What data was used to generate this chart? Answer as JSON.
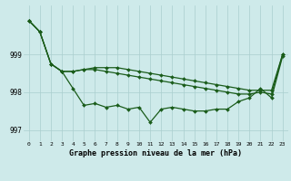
{
  "x": [
    0,
    1,
    2,
    3,
    4,
    5,
    6,
    7,
    8,
    9,
    10,
    11,
    12,
    13,
    14,
    15,
    16,
    17,
    18,
    19,
    20,
    21,
    22,
    23
  ],
  "line1": [
    999.9,
    999.6,
    998.75,
    998.55,
    998.1,
    997.65,
    997.7,
    997.6,
    997.65,
    997.55,
    997.6,
    997.2,
    997.55,
    997.6,
    997.55,
    997.5,
    997.5,
    997.55,
    997.55,
    997.75,
    997.85,
    998.1,
    997.85,
    998.95
  ],
  "line2": [
    999.9,
    999.6,
    998.75,
    998.55,
    998.55,
    998.6,
    998.65,
    998.65,
    998.65,
    998.6,
    998.55,
    998.5,
    998.45,
    998.4,
    998.35,
    998.3,
    998.25,
    998.2,
    998.15,
    998.1,
    998.05,
    998.05,
    998.05,
    999.0
  ],
  "line3": [
    999.9,
    999.6,
    998.75,
    998.55,
    998.55,
    998.6,
    998.6,
    998.55,
    998.5,
    998.45,
    998.4,
    998.35,
    998.3,
    998.25,
    998.2,
    998.15,
    998.1,
    998.05,
    998.0,
    997.95,
    997.95,
    998.0,
    997.95,
    999.0
  ],
  "line_color": "#1a5c1a",
  "marker": "D",
  "markersize": 2.0,
  "linewidth": 0.9,
  "ylim": [
    996.7,
    1000.3
  ],
  "yticks": [
    997,
    998,
    999
  ],
  "xticks": [
    0,
    1,
    2,
    3,
    4,
    5,
    6,
    7,
    8,
    9,
    10,
    11,
    12,
    13,
    14,
    15,
    16,
    17,
    18,
    19,
    20,
    21,
    22,
    23
  ],
  "xlabel": "Graphe pression niveau de la mer (hPa)",
  "bg_color": "#ceeaea",
  "grid_color": "#aacece",
  "title": ""
}
